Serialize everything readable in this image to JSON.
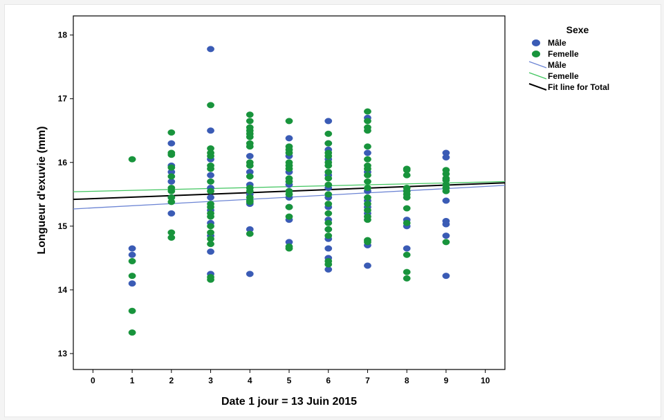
{
  "chart_data": {
    "type": "scatter",
    "xlabel": "Date 1 jour = 13 Juin 2015",
    "ylabel": "Longueur d'exuvie (mm)",
    "xlim": [
      -0.5,
      10.5
    ],
    "ylim": [
      12.75,
      18.3
    ],
    "xticks": [
      "0",
      "1",
      "2",
      "3",
      "4",
      "5",
      "6",
      "7",
      "8",
      "9",
      "10"
    ],
    "yticks": [
      "13",
      "14",
      "15",
      "16",
      "17",
      "18"
    ],
    "grid": false,
    "legend": {
      "title": "Sexe",
      "position": "right",
      "items": [
        {
          "label": "Mâle",
          "kind": "marker",
          "color": "#3a5bb5"
        },
        {
          "label": "Femelle",
          "kind": "marker",
          "color": "#18943c"
        },
        {
          "label": "Mâle",
          "kind": "line",
          "color": "#6b84d4"
        },
        {
          "label": "Femelle",
          "kind": "line",
          "color": "#3fc55e"
        },
        {
          "label": "Fit line for Total",
          "kind": "line",
          "color": "#000000"
        }
      ]
    },
    "series": [
      {
        "name": "Mâle",
        "kind": "scatter",
        "color": "#3a5bb5",
        "points": [
          [
            1,
            14.65
          ],
          [
            1,
            14.55
          ],
          [
            1,
            14.1
          ],
          [
            2,
            16.3
          ],
          [
            2,
            15.95
          ],
          [
            2,
            15.85
          ],
          [
            2,
            15.7
          ],
          [
            2,
            15.45
          ],
          [
            2,
            15.2
          ],
          [
            3,
            17.78
          ],
          [
            3,
            16.5
          ],
          [
            3,
            16.05
          ],
          [
            3,
            15.8
          ],
          [
            3,
            15.6
          ],
          [
            3,
            15.45
          ],
          [
            3,
            15.25
          ],
          [
            3,
            15.05
          ],
          [
            3,
            14.85
          ],
          [
            3,
            14.6
          ],
          [
            3,
            14.25
          ],
          [
            4,
            16.1
          ],
          [
            4,
            15.85
          ],
          [
            4,
            15.65
          ],
          [
            4,
            15.5
          ],
          [
            4,
            15.35
          ],
          [
            4,
            14.95
          ],
          [
            4,
            14.25
          ],
          [
            5,
            16.38
          ],
          [
            5,
            16.1
          ],
          [
            5,
            15.85
          ],
          [
            5,
            15.65
          ],
          [
            5,
            15.45
          ],
          [
            5,
            15.3
          ],
          [
            5,
            15.1
          ],
          [
            5,
            14.75
          ],
          [
            6,
            16.65
          ],
          [
            6,
            16.3
          ],
          [
            6,
            16.2
          ],
          [
            6,
            16.05
          ],
          [
            6,
            15.8
          ],
          [
            6,
            15.6
          ],
          [
            6,
            15.45
          ],
          [
            6,
            15.3
          ],
          [
            6,
            15.1
          ],
          [
            6,
            14.95
          ],
          [
            6,
            14.8
          ],
          [
            6,
            14.65
          ],
          [
            6,
            14.5
          ],
          [
            6,
            14.32
          ],
          [
            7,
            16.7
          ],
          [
            7,
            16.15
          ],
          [
            7,
            15.85
          ],
          [
            7,
            15.55
          ],
          [
            7,
            15.4
          ],
          [
            7,
            15.3
          ],
          [
            7,
            15.2
          ],
          [
            7,
            14.7
          ],
          [
            7,
            14.38
          ],
          [
            8,
            15.55
          ],
          [
            8,
            15.1
          ],
          [
            8,
            15.0
          ],
          [
            8,
            14.65
          ],
          [
            9,
            16.15
          ],
          [
            9,
            16.08
          ],
          [
            9,
            15.4
          ],
          [
            9,
            15.08
          ],
          [
            9,
            15.03
          ],
          [
            9,
            14.85
          ],
          [
            9,
            14.22
          ]
        ]
      },
      {
        "name": "Femelle",
        "kind": "scatter",
        "color": "#18943c",
        "points": [
          [
            1,
            16.05
          ],
          [
            1,
            14.45
          ],
          [
            1,
            14.22
          ],
          [
            1,
            13.67
          ],
          [
            1,
            13.33
          ],
          [
            2,
            16.47
          ],
          [
            2,
            16.15
          ],
          [
            2,
            16.12
          ],
          [
            2,
            15.92
          ],
          [
            2,
            15.78
          ],
          [
            2,
            15.6
          ],
          [
            2,
            15.55
          ],
          [
            2,
            15.45
          ],
          [
            2,
            15.38
          ],
          [
            2,
            14.9
          ],
          [
            2,
            14.82
          ],
          [
            3,
            16.9
          ],
          [
            3,
            16.22
          ],
          [
            3,
            16.15
          ],
          [
            3,
            16.1
          ],
          [
            3,
            15.95
          ],
          [
            3,
            15.9
          ],
          [
            3,
            15.7
          ],
          [
            3,
            15.55
          ],
          [
            3,
            15.35
          ],
          [
            3,
            15.3
          ],
          [
            3,
            15.2
          ],
          [
            3,
            15.15
          ],
          [
            3,
            15.0
          ],
          [
            3,
            14.9
          ],
          [
            3,
            14.8
          ],
          [
            3,
            14.72
          ],
          [
            3,
            14.2
          ],
          [
            3,
            14.16
          ],
          [
            4,
            16.75
          ],
          [
            4,
            16.65
          ],
          [
            4,
            16.55
          ],
          [
            4,
            16.5
          ],
          [
            4,
            16.45
          ],
          [
            4,
            16.4
          ],
          [
            4,
            16.3
          ],
          [
            4,
            16.25
          ],
          [
            4,
            16.0
          ],
          [
            4,
            15.95
          ],
          [
            4,
            15.78
          ],
          [
            4,
            15.6
          ],
          [
            4,
            15.55
          ],
          [
            4,
            15.45
          ],
          [
            4,
            15.4
          ],
          [
            4,
            15.38
          ],
          [
            4,
            14.88
          ],
          [
            5,
            16.65
          ],
          [
            5,
            16.25
          ],
          [
            5,
            16.2
          ],
          [
            5,
            16.15
          ],
          [
            5,
            16.0
          ],
          [
            5,
            15.95
          ],
          [
            5,
            15.9
          ],
          [
            5,
            15.75
          ],
          [
            5,
            15.7
          ],
          [
            5,
            15.55
          ],
          [
            5,
            15.5
          ],
          [
            5,
            15.3
          ],
          [
            5,
            15.15
          ],
          [
            5,
            14.68
          ],
          [
            5,
            14.65
          ],
          [
            6,
            16.45
          ],
          [
            6,
            16.3
          ],
          [
            6,
            16.15
          ],
          [
            6,
            16.1
          ],
          [
            6,
            16.0
          ],
          [
            6,
            15.95
          ],
          [
            6,
            15.85
          ],
          [
            6,
            15.75
          ],
          [
            6,
            15.65
          ],
          [
            6,
            15.5
          ],
          [
            6,
            15.35
          ],
          [
            6,
            15.2
          ],
          [
            6,
            15.05
          ],
          [
            6,
            14.95
          ],
          [
            6,
            14.85
          ],
          [
            6,
            14.45
          ],
          [
            6,
            14.4
          ],
          [
            7,
            16.8
          ],
          [
            7,
            16.65
          ],
          [
            7,
            16.55
          ],
          [
            7,
            16.5
          ],
          [
            7,
            16.25
          ],
          [
            7,
            16.05
          ],
          [
            7,
            15.95
          ],
          [
            7,
            15.9
          ],
          [
            7,
            15.8
          ],
          [
            7,
            15.7
          ],
          [
            7,
            15.6
          ],
          [
            7,
            15.45
          ],
          [
            7,
            15.35
          ],
          [
            7,
            15.25
          ],
          [
            7,
            15.15
          ],
          [
            7,
            15.1
          ],
          [
            7,
            14.78
          ],
          [
            7,
            14.75
          ],
          [
            8,
            15.9
          ],
          [
            8,
            15.88
          ],
          [
            8,
            15.8
          ],
          [
            8,
            15.6
          ],
          [
            8,
            15.55
          ],
          [
            8,
            15.5
          ],
          [
            8,
            15.45
          ],
          [
            8,
            15.28
          ],
          [
            8,
            15.05
          ],
          [
            8,
            14.55
          ],
          [
            8,
            14.28
          ],
          [
            8,
            14.18
          ],
          [
            9,
            15.88
          ],
          [
            9,
            15.82
          ],
          [
            9,
            15.75
          ],
          [
            9,
            15.72
          ],
          [
            9,
            15.65
          ],
          [
            9,
            15.6
          ],
          [
            9,
            15.55
          ],
          [
            9,
            14.75
          ]
        ]
      },
      {
        "name": "Mâle",
        "kind": "fit-line",
        "color": "#6b84d4",
        "x": [
          -0.5,
          10.5
        ],
        "y": [
          15.27,
          15.64
        ]
      },
      {
        "name": "Femelle",
        "kind": "fit-line",
        "color": "#3fc55e",
        "x": [
          -0.5,
          10.5
        ],
        "y": [
          15.54,
          15.7
        ]
      },
      {
        "name": "Fit line for Total",
        "kind": "fit-line",
        "color": "#000000",
        "x": [
          -0.5,
          10.5
        ],
        "y": [
          15.42,
          15.68
        ]
      }
    ]
  }
}
